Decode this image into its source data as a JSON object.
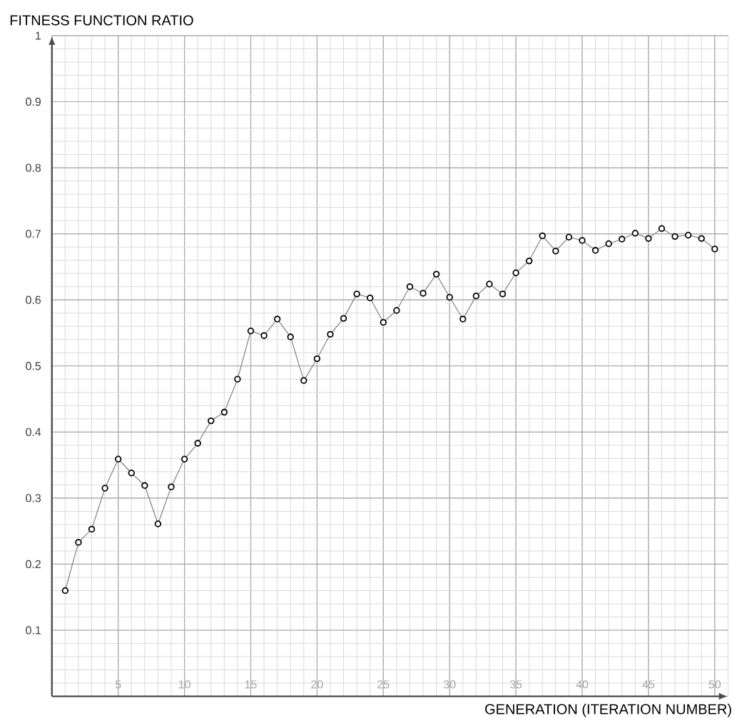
{
  "chart_data": {
    "type": "line",
    "ylabel": "FITNESS FUNCTION RATIO",
    "xlabel": "GENERATION (ITERATION NUMBER)",
    "x": [
      1,
      2,
      3,
      4,
      5,
      6,
      7,
      8,
      9,
      10,
      11,
      12,
      13,
      14,
      15,
      16,
      17,
      18,
      19,
      20,
      21,
      22,
      23,
      24,
      25,
      26,
      27,
      28,
      29,
      30,
      31,
      32,
      33,
      34,
      35,
      36,
      37,
      38,
      39,
      40,
      41,
      42,
      43,
      44,
      45,
      46,
      47,
      48,
      49,
      50
    ],
    "series": [
      {
        "color": "#000000",
        "values": [
          0.16,
          0.233,
          0.253,
          0.315,
          0.359,
          0.338,
          0.319,
          0.261,
          0.317,
          0.359,
          0.383,
          0.417,
          0.43,
          0.48,
          0.553,
          0.546,
          0.571,
          0.544,
          0.478,
          0.511,
          0.548,
          0.572,
          0.609,
          0.603,
          0.566,
          0.584,
          0.62,
          0.61,
          0.639,
          0.604,
          0.571,
          0.606,
          0.624,
          0.609,
          0.641,
          0.659,
          0.697,
          0.674,
          0.695,
          0.69,
          0.675,
          0.685,
          0.692,
          0.701,
          0.693,
          0.708,
          0.696,
          0.698,
          0.693,
          0.677
        ]
      }
    ],
    "xlim": [
      0,
      51
    ],
    "ylim": [
      0,
      1
    ],
    "xticks": [
      5,
      10,
      15,
      20,
      25,
      30,
      35,
      40,
      45,
      50
    ],
    "yticks": [
      0.1,
      0.2,
      0.3,
      0.4,
      0.5,
      0.6,
      0.7,
      0.8,
      0.9,
      1
    ],
    "grid": true,
    "marker": "circle",
    "line_style": "solid"
  }
}
